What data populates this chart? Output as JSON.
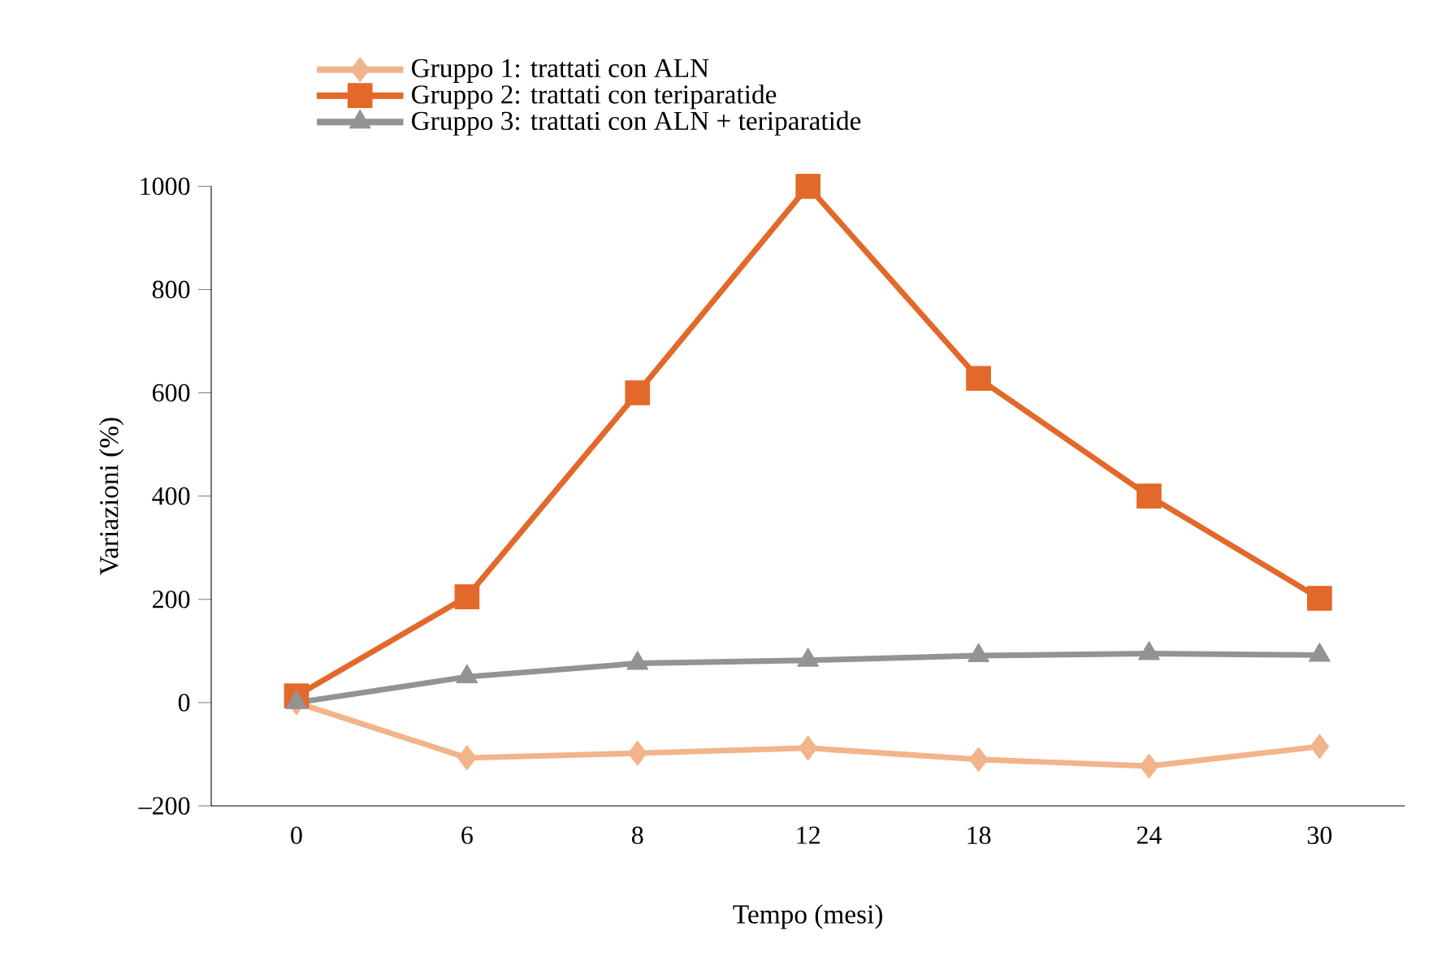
{
  "chart_data": {
    "type": "line",
    "xlabel": "Tempo (mesi)",
    "ylabel": "Variazioni (%)",
    "categories": [
      "0",
      "6",
      "8",
      "12",
      "18",
      "24",
      "30"
    ],
    "ylim": [
      -200,
      1000
    ],
    "yticks": [
      {
        "value": -200,
        "label": "–200"
      },
      0,
      200,
      400,
      600,
      800,
      1000
    ],
    "legend": "top",
    "grid": false,
    "line_style": "solid",
    "series": [
      {
        "name": "Gruppo 1: trattati con ALN",
        "color": "#f2b48a",
        "marker": "diamond",
        "values": [
          0,
          -107,
          -98,
          -88,
          -110,
          -123,
          -85
        ]
      },
      {
        "name": "Gruppo 2: trattati con teriparatide",
        "color": "#e2692a",
        "marker": "square",
        "values": [
          13,
          205,
          600,
          1000,
          628,
          400,
          202
        ]
      },
      {
        "name": "Gruppo 3: trattati con ALN + teriparatide",
        "color": "#939393",
        "marker": "triangle",
        "values": [
          0,
          50,
          76,
          82,
          91,
          95,
          92
        ]
      }
    ]
  }
}
